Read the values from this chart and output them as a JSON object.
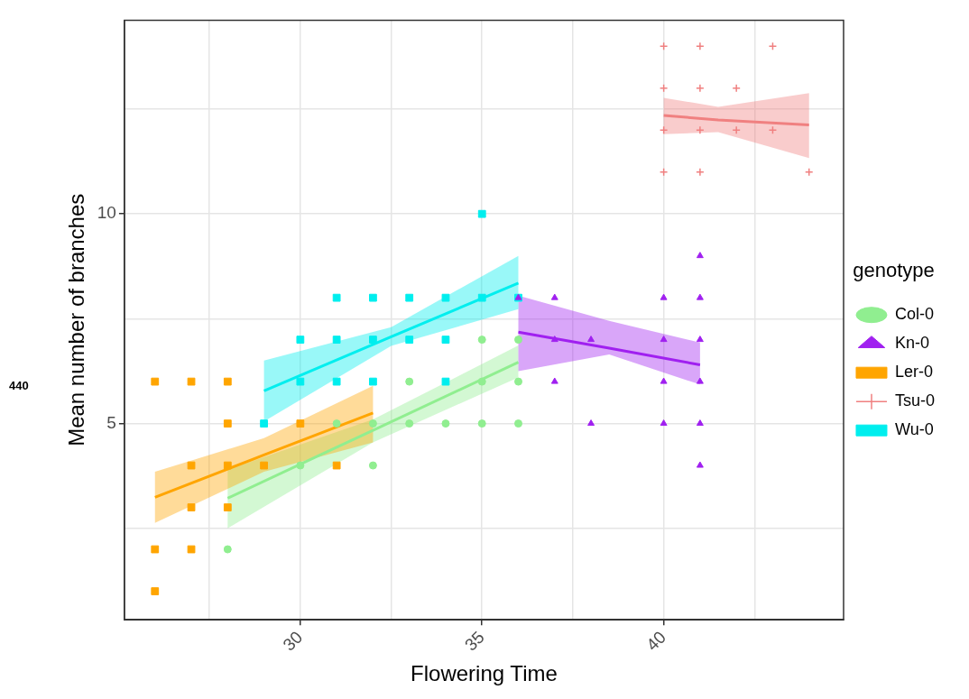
{
  "chart_data": {
    "type": "scatter",
    "xlabel": "Flowering Time",
    "ylabel": "Mean number of branches",
    "legend_title": "genotype",
    "legend": "right",
    "grid": true,
    "xlim": [
      25.16,
      44.95
    ],
    "ylim": [
      0.32,
      14.62
    ],
    "xticks": [
      {
        "value": 27.5,
        "label": null
      },
      30,
      {
        "value": 32.5,
        "label": null
      },
      35,
      {
        "value": 37.5,
        "label": null
      },
      40,
      {
        "value": 42.5,
        "label": null
      }
    ],
    "yticks": [
      {
        "value": 2.5,
        "label": null
      },
      5,
      {
        "value": 7.5,
        "label": null
      },
      10,
      {
        "value": 12.5,
        "label": null
      }
    ],
    "annotations": [
      "440"
    ],
    "series": [
      {
        "name": "Col-0",
        "type": "scatter",
        "marker": "circle",
        "color": "#90ee90",
        "x": [
          28,
          30,
          31,
          32,
          32,
          33,
          33,
          34,
          35,
          35,
          35,
          36,
          36,
          36
        ],
        "values": [
          2,
          4,
          5,
          4,
          5,
          5,
          6,
          5,
          5,
          6,
          7,
          5,
          6,
          7
        ]
      },
      {
        "name": "Kn-0",
        "type": "scatter",
        "marker": "triangle",
        "color": "#a020f0",
        "x": [
          36,
          37,
          37,
          37,
          38,
          38,
          40,
          40,
          40,
          40,
          41,
          41,
          41,
          41,
          41,
          41
        ],
        "values": [
          8,
          8,
          7,
          6,
          7,
          5,
          8,
          7,
          6,
          5,
          9,
          8,
          7,
          6,
          5,
          4
        ]
      },
      {
        "name": "Ler-0",
        "type": "scatter",
        "marker": "square",
        "color": "#ffa500",
        "x": [
          26,
          26,
          26,
          27,
          27,
          27,
          27,
          28,
          28,
          28,
          28,
          29,
          30,
          31
        ],
        "values": [
          6,
          2,
          1,
          6,
          4,
          3,
          2,
          6,
          5,
          4,
          3,
          4,
          5,
          4
        ]
      },
      {
        "name": "Tsu-0",
        "type": "scatter",
        "marker": "cross",
        "color": "#f08080",
        "x": [
          40,
          41,
          43,
          40,
          41,
          42,
          40,
          41,
          42,
          43,
          40,
          41,
          44
        ],
        "values": [
          14,
          14,
          14,
          13,
          13,
          13,
          12,
          12,
          12,
          12,
          11,
          11,
          11
        ]
      },
      {
        "name": "Wu-0",
        "type": "scatter",
        "marker": "square",
        "color": "#00eeee",
        "x": [
          29,
          30,
          30,
          31,
          31,
          31,
          32,
          32,
          32,
          33,
          33,
          34,
          34,
          34,
          35,
          35,
          36
        ],
        "values": [
          5,
          6,
          7,
          6,
          7,
          8,
          6,
          7,
          8,
          7,
          8,
          6,
          7,
          8,
          8,
          10,
          8
        ]
      },
      {
        "type": "line",
        "color": "#90ee90",
        "x": [
          28,
          32,
          36
        ],
        "values": [
          3.22,
          4.84,
          6.46
        ],
        "lower": [
          2.5,
          4.55,
          6.1
        ],
        "upper": [
          3.9,
          5.1,
          6.86
        ]
      },
      {
        "type": "line",
        "color": "#a020f0",
        "x": [
          36,
          38.5,
          41
        ],
        "values": [
          7.18,
          6.8,
          6.4
        ],
        "lower": [
          6.25,
          6.65,
          5.93
        ],
        "upper": [
          8.05,
          7.45,
          6.93
        ]
      },
      {
        "type": "line",
        "color": "#ffa500",
        "x": [
          26,
          29,
          32
        ],
        "values": [
          3.24,
          4.25,
          5.25
        ],
        "lower": [
          2.63,
          3.85,
          4.55
        ],
        "upper": [
          3.85,
          4.65,
          5.9
        ]
      },
      {
        "type": "line",
        "color": "#f08080",
        "x": [
          40,
          41.5,
          44
        ],
        "values": [
          12.35,
          12.24,
          12.12
        ],
        "lower": [
          11.9,
          11.95,
          11.33
        ],
        "upper": [
          12.77,
          12.55,
          12.88
        ]
      },
      {
        "type": "line",
        "color": "#00eeee",
        "x": [
          29,
          32.5,
          36
        ],
        "values": [
          5.78,
          7.07,
          8.35
        ],
        "lower": [
          5.05,
          6.85,
          7.73
        ],
        "upper": [
          6.5,
          7.3,
          9.0
        ]
      }
    ]
  }
}
